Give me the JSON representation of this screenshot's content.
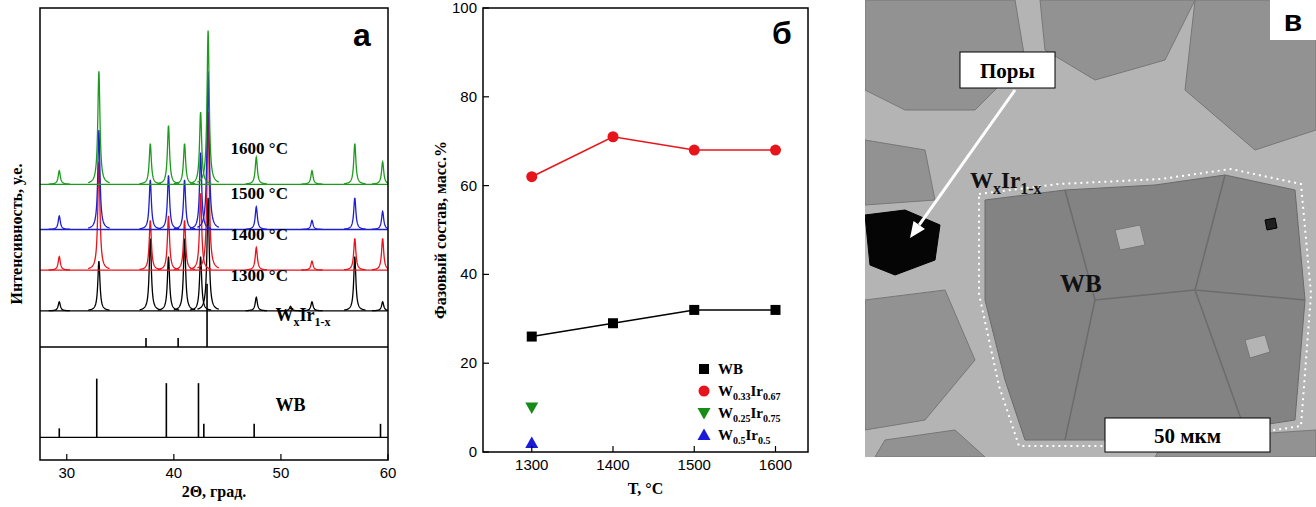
{
  "chart_data": [
    {
      "type": "spectrum",
      "panel_label": "а",
      "x_label": "2Θ, град.",
      "y_label": "Интенсивность, у.е.",
      "xlim": [
        27.5,
        60
      ],
      "xticks": [
        30,
        40,
        50,
        60
      ],
      "ylim": [
        0,
        100
      ],
      "tick_labels": "x",
      "series": [
        {
          "name": "1300 °C",
          "color": "#000000",
          "baseline": 33,
          "x": [
            29.3,
            33.0,
            37.8,
            39.5,
            41.0,
            42.5,
            43.2,
            47.7,
            50.9,
            52.9,
            56.9,
            59.5
          ],
          "values": [
            2,
            11,
            16,
            12,
            16,
            12,
            25,
            3,
            1,
            2,
            12,
            2
          ]
        },
        {
          "name": "1400 °C",
          "color": "#e8141c",
          "baseline": 42,
          "x": [
            29.3,
            33.0,
            37.8,
            39.5,
            41.0,
            42.5,
            43.2,
            47.7,
            52.9,
            56.9,
            59.5
          ],
          "values": [
            3,
            24,
            11,
            12,
            11,
            17,
            35,
            5,
            2,
            7,
            7
          ]
        },
        {
          "name": "1500 °C",
          "color": "#1f1fd0",
          "baseline": 51,
          "x": [
            29.3,
            33.0,
            37.8,
            39.5,
            41.0,
            42.5,
            43.2,
            47.7,
            52.9,
            56.9,
            59.5
          ],
          "values": [
            3,
            22,
            11,
            12,
            11,
            17,
            35,
            5,
            2,
            7,
            4
          ]
        },
        {
          "name": "1600 °C",
          "color": "#1e9b1e",
          "baseline": 61,
          "x": [
            29.3,
            33.0,
            37.8,
            39.5,
            41.0,
            42.5,
            43.2,
            47.7,
            52.9,
            56.9,
            59.5
          ],
          "values": [
            3,
            25,
            9,
            13,
            9,
            16,
            34,
            6,
            3,
            9,
            5
          ]
        },
        {
          "name": "WxIr1-x",
          "type": "stick",
          "color": "#000000",
          "baseline": 25,
          "x": [
            37.4,
            40.4,
            43.1
          ],
          "values": [
            2,
            2,
            14
          ]
        },
        {
          "name": "WB",
          "type": "stick",
          "color": "#000000",
          "baseline": 5,
          "x": [
            29.3,
            32.8,
            39.3,
            42.3,
            42.8,
            47.5,
            59.3
          ],
          "values": [
            2,
            13,
            12,
            12,
            3,
            3,
            3
          ]
        }
      ]
    },
    {
      "type": "line",
      "panel_label": "б",
      "x_label": "T, °C",
      "y_label": "Фазовый состав, масс.%",
      "x": [
        1300,
        1400,
        1500,
        1600
      ],
      "xlim": [
        1240,
        1640
      ],
      "xticks": [
        1300,
        1400,
        1500,
        1600
      ],
      "ylim": [
        0,
        100
      ],
      "yticks": [
        0,
        20,
        40,
        60,
        80,
        100
      ],
      "grid": false,
      "legend": "lower right",
      "series": [
        {
          "name": "WB",
          "color": "#000000",
          "marker": "square",
          "values": [
            26,
            29,
            32,
            32
          ]
        },
        {
          "name": "W0.33Ir0.67",
          "color": "#e8141c",
          "marker": "circle",
          "values": [
            62,
            71,
            68,
            68
          ]
        },
        {
          "name": "W0.25Ir0.75",
          "color": "#168c16",
          "marker": "triangle-down",
          "values": [
            10,
            null,
            null,
            null
          ]
        },
        {
          "name": "W0.5Ir0.5",
          "color": "#1a1ad8",
          "marker": "triangle-up",
          "values": [
            2,
            null,
            null,
            null
          ]
        }
      ]
    }
  ],
  "image": {
    "panel_label": "в",
    "labels": {
      "pores": "Поры",
      "matrix": "WxIr1-x",
      "grain": "WB",
      "scale_bar": "50 мкм"
    }
  }
}
